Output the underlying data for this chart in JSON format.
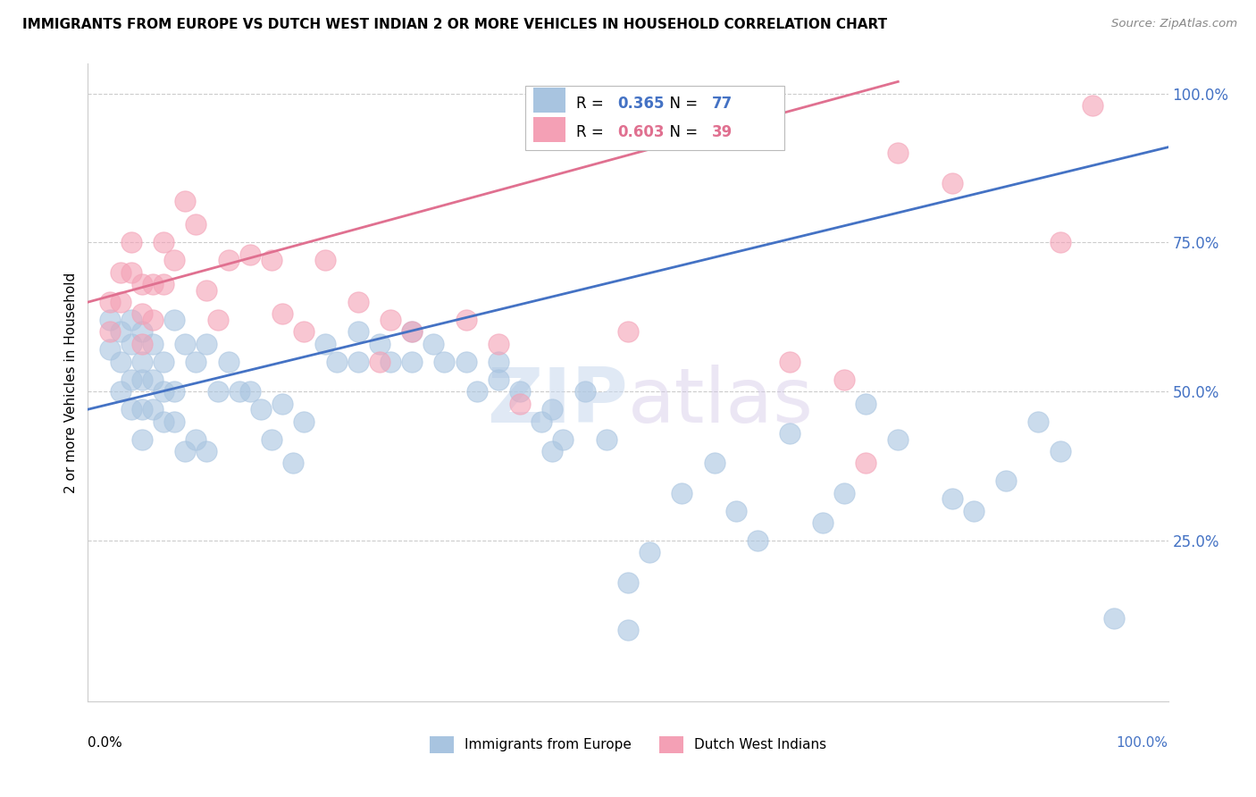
{
  "title": "IMMIGRANTS FROM EUROPE VS DUTCH WEST INDIAN 2 OR MORE VEHICLES IN HOUSEHOLD CORRELATION CHART",
  "source": "Source: ZipAtlas.com",
  "ylabel": "2 or more Vehicles in Household",
  "blue_R": 0.365,
  "blue_N": 77,
  "pink_R": 0.603,
  "pink_N": 39,
  "blue_color": "#a8c4e0",
  "pink_color": "#f4a0b5",
  "blue_line_color": "#4472c4",
  "pink_line_color": "#e07090",
  "legend_blue_label": "Immigrants from Europe",
  "legend_pink_label": "Dutch West Indians",
  "blue_line_x0": 0.0,
  "blue_line_y0": 0.47,
  "blue_line_x1": 1.0,
  "blue_line_y1": 0.91,
  "pink_line_x0": 0.0,
  "pink_line_y0": 0.65,
  "pink_line_x1": 0.75,
  "pink_line_y1": 1.02,
  "xlim": [
    0,
    1
  ],
  "ylim": [
    -0.02,
    1.05
  ],
  "ytick_positions": [
    0.25,
    0.5,
    0.75,
    1.0
  ],
  "ytick_labels": [
    "25.0%",
    "50.0%",
    "75.0%",
    "100.0%"
  ],
  "blue_scatter_x": [
    0.02,
    0.02,
    0.03,
    0.03,
    0.03,
    0.04,
    0.04,
    0.04,
    0.04,
    0.05,
    0.05,
    0.05,
    0.05,
    0.05,
    0.06,
    0.06,
    0.06,
    0.07,
    0.07,
    0.07,
    0.08,
    0.08,
    0.08,
    0.09,
    0.09,
    0.1,
    0.1,
    0.11,
    0.11,
    0.12,
    0.13,
    0.14,
    0.15,
    0.16,
    0.17,
    0.18,
    0.19,
    0.2,
    0.22,
    0.23,
    0.25,
    0.25,
    0.27,
    0.28,
    0.3,
    0.3,
    0.32,
    0.33,
    0.35,
    0.36,
    0.38,
    0.38,
    0.4,
    0.42,
    0.43,
    0.44,
    0.46,
    0.48,
    0.5,
    0.52,
    0.55,
    0.58,
    0.6,
    0.62,
    0.65,
    0.68,
    0.7,
    0.72,
    0.75,
    0.8,
    0.82,
    0.85,
    0.88,
    0.9,
    0.95,
    0.43,
    0.5
  ],
  "blue_scatter_y": [
    0.62,
    0.57,
    0.6,
    0.55,
    0.5,
    0.62,
    0.58,
    0.52,
    0.47,
    0.6,
    0.55,
    0.52,
    0.47,
    0.42,
    0.58,
    0.52,
    0.47,
    0.55,
    0.5,
    0.45,
    0.62,
    0.5,
    0.45,
    0.58,
    0.4,
    0.55,
    0.42,
    0.58,
    0.4,
    0.5,
    0.55,
    0.5,
    0.5,
    0.47,
    0.42,
    0.48,
    0.38,
    0.45,
    0.58,
    0.55,
    0.6,
    0.55,
    0.58,
    0.55,
    0.6,
    0.55,
    0.58,
    0.55,
    0.55,
    0.5,
    0.55,
    0.52,
    0.5,
    0.45,
    0.47,
    0.42,
    0.5,
    0.42,
    0.18,
    0.23,
    0.33,
    0.38,
    0.3,
    0.25,
    0.43,
    0.28,
    0.33,
    0.48,
    0.42,
    0.32,
    0.3,
    0.35,
    0.45,
    0.4,
    0.12,
    0.4,
    0.1
  ],
  "pink_scatter_x": [
    0.02,
    0.02,
    0.03,
    0.03,
    0.04,
    0.04,
    0.05,
    0.05,
    0.05,
    0.06,
    0.06,
    0.07,
    0.07,
    0.08,
    0.09,
    0.1,
    0.11,
    0.12,
    0.13,
    0.15,
    0.17,
    0.18,
    0.2,
    0.22,
    0.25,
    0.27,
    0.28,
    0.3,
    0.35,
    0.38,
    0.4,
    0.5,
    0.65,
    0.7,
    0.72,
    0.75,
    0.8,
    0.9,
    0.93
  ],
  "pink_scatter_y": [
    0.65,
    0.6,
    0.7,
    0.65,
    0.75,
    0.7,
    0.68,
    0.63,
    0.58,
    0.68,
    0.62,
    0.75,
    0.68,
    0.72,
    0.82,
    0.78,
    0.67,
    0.62,
    0.72,
    0.73,
    0.72,
    0.63,
    0.6,
    0.72,
    0.65,
    0.55,
    0.62,
    0.6,
    0.62,
    0.58,
    0.48,
    0.6,
    0.55,
    0.52,
    0.38,
    0.9,
    0.85,
    0.75,
    0.98
  ]
}
